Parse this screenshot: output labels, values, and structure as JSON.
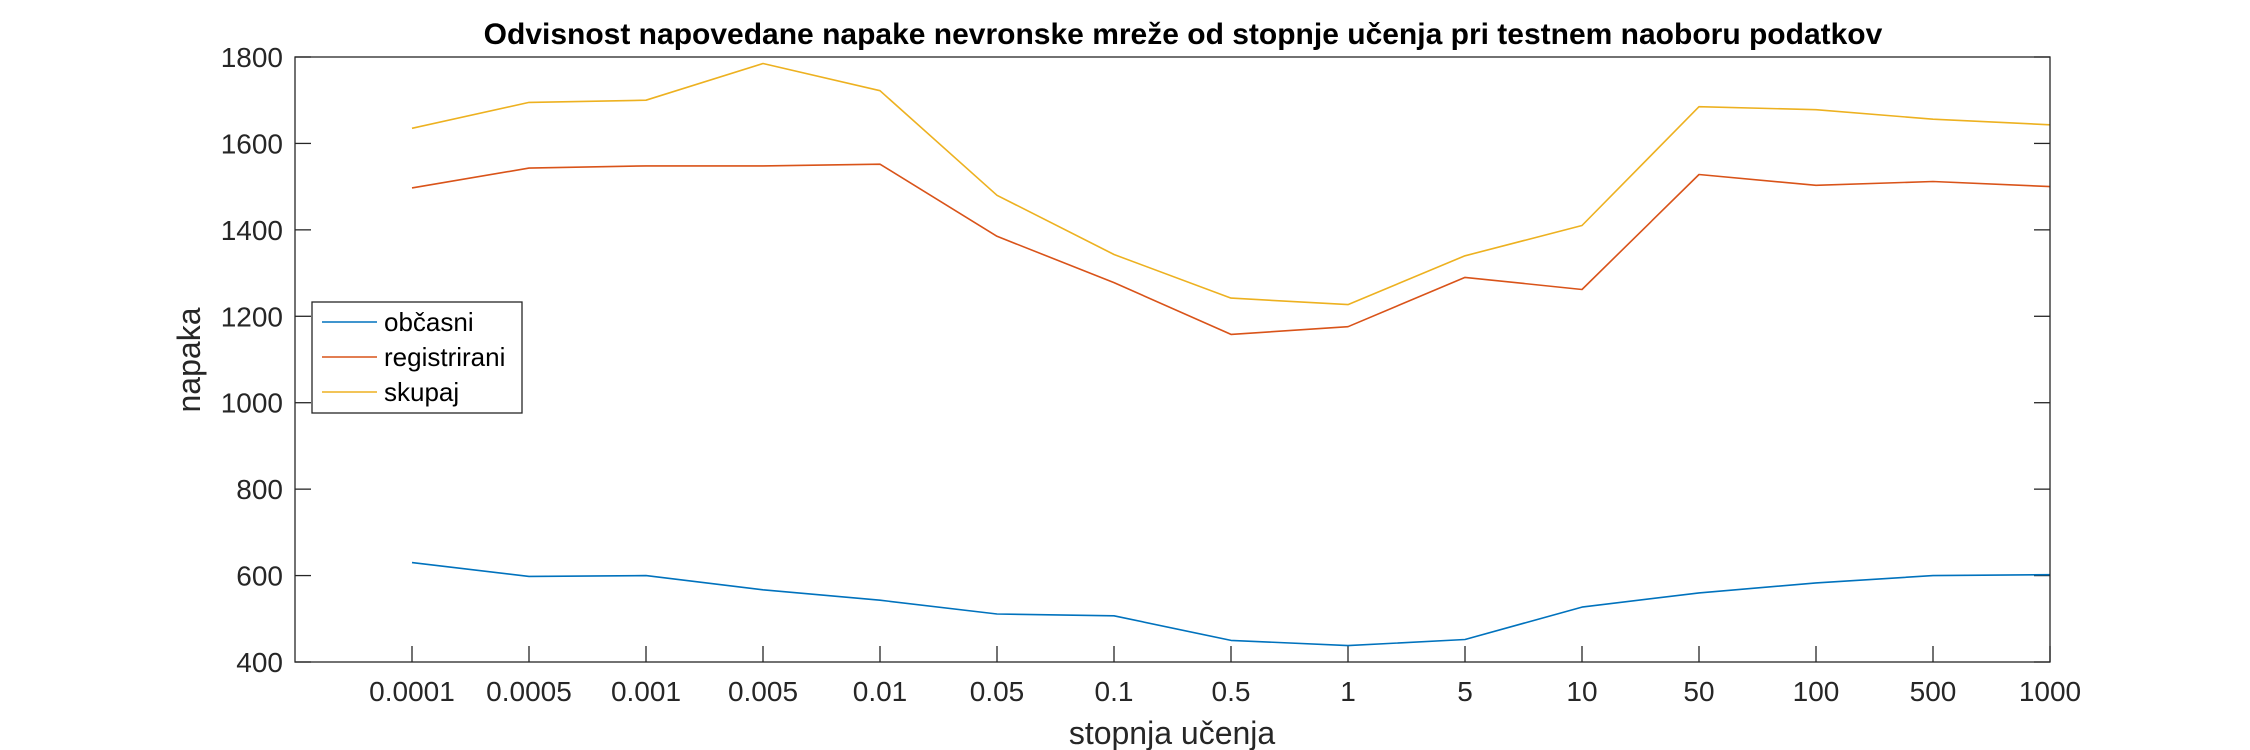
{
  "chart_data": {
    "type": "line",
    "title": "Odvisnost napovedane napake nevronske mreže od stopnje učenja pri testnem naoboru podatkov",
    "xlabel": "stopnja učenja",
    "ylabel": "napaka",
    "categories": [
      "0.0001",
      "0.0005",
      "0.001",
      "0.005",
      "0.01",
      "0.05",
      "0.1",
      "0.5",
      "1",
      "5",
      "10",
      "50",
      "100",
      "500",
      "1000"
    ],
    "ylim": [
      400,
      1800
    ],
    "yticks": [
      400,
      600,
      800,
      1000,
      1200,
      1400,
      1600,
      1800
    ],
    "grid": false,
    "legend_position": "left",
    "series": [
      {
        "name": "občasni",
        "color": "#0072BD",
        "values": [
          630,
          598,
          600,
          567,
          543,
          511,
          507,
          450,
          438,
          452,
          527,
          560,
          583,
          600,
          602
        ]
      },
      {
        "name": "registrirani",
        "color": "#D95319",
        "values": [
          1497,
          1543,
          1548,
          1548,
          1552,
          1385,
          1278,
          1158,
          1176,
          1290,
          1262,
          1528,
          1503,
          1512,
          1500
        ]
      },
      {
        "name": "skupaj",
        "color": "#EDB120",
        "values": [
          1635,
          1695,
          1700,
          1785,
          1722,
          1480,
          1343,
          1242,
          1227,
          1340,
          1410,
          1685,
          1678,
          1656,
          1643
        ]
      }
    ]
  }
}
